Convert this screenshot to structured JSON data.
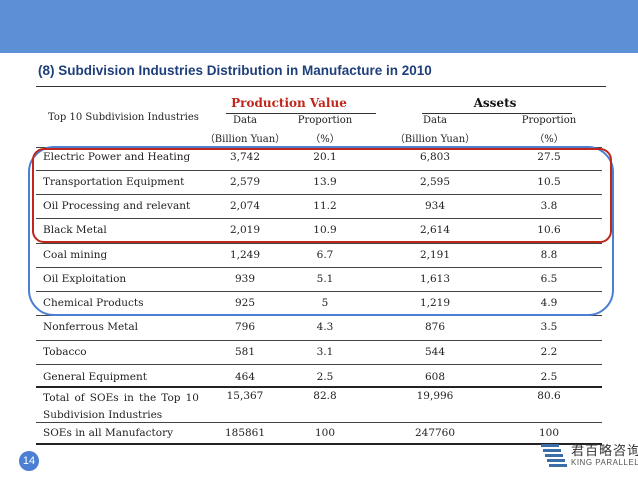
{
  "title": "(8) Subdivision Industries Distribution in Manufacture in 2010",
  "header": {
    "row_label": "Top 10 Subdivision Industries",
    "group_production": "Production Value",
    "group_assets": "Assets",
    "col_data": "Data",
    "col_proportion": "Proportion",
    "unit_billion": "（Billion Yuan）",
    "unit_percent": "（%）"
  },
  "rows": [
    {
      "name": "Electric Power and Heating",
      "pv": "3,742",
      "pp": "20.1",
      "ad": "6,803",
      "ap": "27.5"
    },
    {
      "name": "Transportation Equipment",
      "pv": "2,579",
      "pp": "13.9",
      "ad": "2,595",
      "ap": "10.5"
    },
    {
      "name": "Oil Processing and relevant",
      "pv": "2,074",
      "pp": "11.2",
      "ad": "934",
      "ap": "3.8"
    },
    {
      "name": "Black Metal",
      "pv": "2,019",
      "pp": "10.9",
      "ad": "2,614",
      "ap": "10.6"
    },
    {
      "name": "Coal mining",
      "pv": "1,249",
      "pp": "6.7",
      "ad": "2,191",
      "ap": "8.8"
    },
    {
      "name": "Oil Exploitation",
      "pv": "939",
      "pp": "5.1",
      "ad": "1,613",
      "ap": "6.5"
    },
    {
      "name": "Chemical Products",
      "pv": "925",
      "pp": "5",
      "ad": "1,219",
      "ap": "4.9"
    },
    {
      "name": "Nonferrous Metal",
      "pv": "796",
      "pp": "4.3",
      "ad": "876",
      "ap": "3.5"
    },
    {
      "name": "Tobacco",
      "pv": "581",
      "pp": "3.1",
      "ad": "544",
      "ap": "2.2"
    },
    {
      "name": "General Equipment",
      "pv": "464",
      "pp": "2.5",
      "ad": "608",
      "ap": "2.5"
    }
  ],
  "total_top10": {
    "name": "Total of SOEs in the Top 10 Subdivision Industries",
    "pv": "15,367",
    "pp": "82.8",
    "ad": "19,996",
    "ap": "80.6"
  },
  "total_all": {
    "name": "SOEs in all Manufactory",
    "pv": "185861",
    "pp": "100",
    "ad": "247760",
    "ap": "100"
  },
  "page_number": "14",
  "logo": {
    "cn": "君百略咨询",
    "en": "KING PARALLEL"
  },
  "colors": {
    "accent_blue": "#5b8fd6",
    "title_blue": "#1f3f7a",
    "highlight_red": "#c0261b"
  }
}
